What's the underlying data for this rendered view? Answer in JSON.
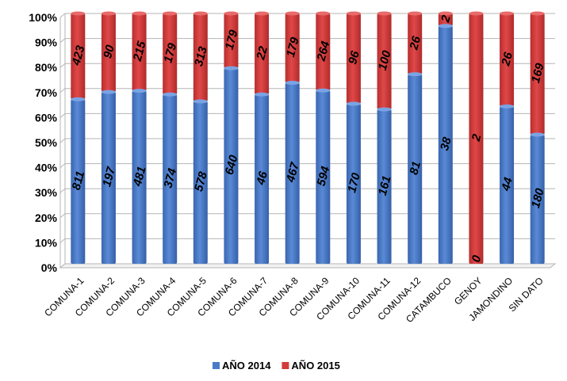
{
  "chart_data": {
    "type": "bar",
    "stacked": "percent",
    "categories": [
      "COMUNA-1",
      "COMUNA-2",
      "COMUNA-3",
      "COMUNA-4",
      "COMUNA-5",
      "COMUNA-6",
      "COMUNA-7",
      "COMUNA-8",
      "COMUNA-9",
      "COMUNA-10",
      "COMUNA-11",
      "COMUNA-12",
      "CATAMBUCO",
      "GENOY",
      "JAMONDINO",
      "SIN DATO"
    ],
    "series": [
      {
        "name": "AÑO 2014",
        "color": "#4a7bc8",
        "values": [
          811,
          197,
          481,
          374,
          578,
          640,
          46,
          467,
          594,
          170,
          161,
          81,
          38,
          0,
          44,
          180
        ]
      },
      {
        "name": "AÑO 2015",
        "color": "#d13b3b",
        "values": [
          423,
          90,
          215,
          179,
          313,
          179,
          22,
          179,
          264,
          96,
          100,
          26,
          2,
          2,
          26,
          169
        ]
      }
    ],
    "yticks": [
      "0%",
      "10%",
      "20%",
      "30%",
      "40%",
      "50%",
      "60%",
      "70%",
      "80%",
      "90%",
      "100%"
    ],
    "ylim": [
      0,
      100
    ],
    "grid": true,
    "legend": "bottom",
    "title": "",
    "xlabel": "",
    "ylabel": ""
  }
}
